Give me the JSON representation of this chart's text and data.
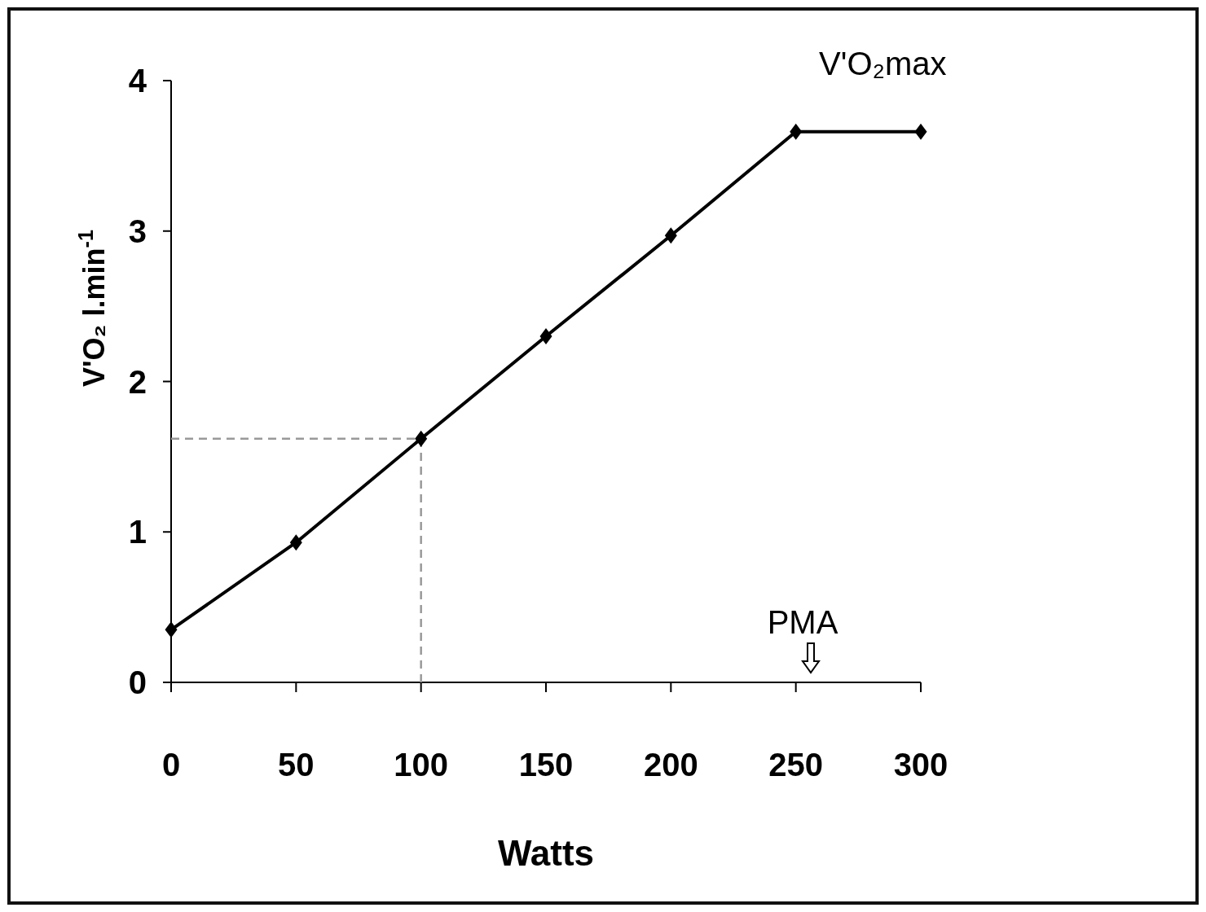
{
  "chart_data": {
    "type": "line",
    "xlabel": "Watts",
    "ylabel": "V'O₂ l.min$^{-1}$",
    "x": [
      0,
      50,
      100,
      150,
      200,
      250,
      300
    ],
    "xlim": [
      0,
      300
    ],
    "xticks": [
      0,
      50,
      100,
      150,
      200,
      250,
      300
    ],
    "ylim": [
      0,
      4
    ],
    "yticks": [
      0,
      1,
      2,
      3,
      4
    ],
    "series": [
      {
        "color": "#000000",
        "values": [
          0.35,
          0.93,
          1.62,
          2.3,
          2.97,
          3.66,
          3.66
        ],
        "marker": "diamond",
        "line_style": "solid"
      }
    ],
    "ref_lines": [
      {
        "axis": "x",
        "value": 100,
        "color": "#999999",
        "line_style": "dashed"
      },
      {
        "axis": "y",
        "value": 1.62,
        "color": "#999999",
        "line_style": "dashed"
      }
    ],
    "annotations": [
      {
        "text": "V'O₂max",
        "x": 275,
        "y": 3.66
      },
      "PMA"
    ],
    "grid": false
  }
}
